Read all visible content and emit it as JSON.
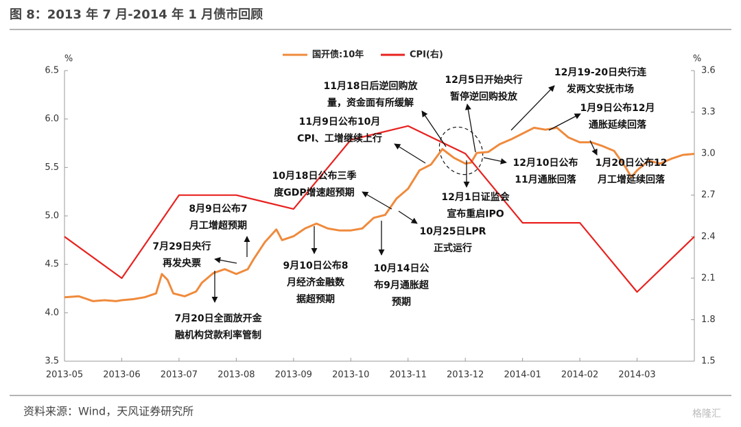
{
  "chart_data": {
    "type": "line",
    "title": "图 8：2013 年 7 月-2014 年 1 月债市回顾",
    "source": "资料来源：Wind，天风证券研究所",
    "watermark": "格隆汇",
    "y_unit": "%",
    "y2_unit": "%",
    "xlim": [
      0,
      11
    ],
    "xticks": [
      {
        "value": 0,
        "label": "2013-05"
      },
      {
        "value": 1,
        "label": "2013-06"
      },
      {
        "value": 2,
        "label": "2013-07"
      },
      {
        "value": 3,
        "label": "2013-08"
      },
      {
        "value": 4,
        "label": "2013-09"
      },
      {
        "value": 5,
        "label": "2013-10"
      },
      {
        "value": 6,
        "label": "2013-11"
      },
      {
        "value": 7,
        "label": "2013-12"
      },
      {
        "value": 8,
        "label": "2014-01"
      },
      {
        "value": 9,
        "label": "2014-02"
      },
      {
        "value": 10,
        "label": "2014-03"
      }
    ],
    "ylim": [
      3.5,
      6.5
    ],
    "yticks": [
      3.5,
      {
        "value": 4,
        "label": "4.0"
      },
      4.5,
      {
        "value": 5,
        "label": "5.0"
      },
      5.5,
      {
        "value": 6,
        "label": "6.0"
      },
      6.5
    ],
    "y2lim": [
      1.5,
      3.6
    ],
    "y2ticks": [
      1.5,
      1.8,
      2.1,
      2.4,
      2.7,
      {
        "value": 3,
        "label": "3.0"
      },
      3.3,
      3.6
    ],
    "legend": "top",
    "series": [
      {
        "name": "国开债:10年",
        "color": "#ef8a3c",
        "x": [
          0,
          0.25,
          0.4,
          0.5,
          0.7,
          0.9,
          1.0,
          1.2,
          1.4,
          1.6,
          1.7,
          1.8,
          1.9,
          2.1,
          2.3,
          2.4,
          2.6,
          2.8,
          3.0,
          3.2,
          3.3,
          3.5,
          3.7,
          3.8,
          4.0,
          4.2,
          4.4,
          4.6,
          4.8,
          5.0,
          5.2,
          5.4,
          5.6,
          5.8,
          6.0,
          6.2,
          6.4,
          6.6,
          6.8,
          7.0,
          7.1,
          7.2,
          7.4,
          7.6,
          7.8,
          8.0,
          8.2,
          8.4,
          8.6,
          8.8,
          9.0,
          9.2,
          9.4,
          9.6,
          9.8,
          9.9,
          10.0,
          10.2,
          10.4,
          10.6,
          10.8,
          11.0
        ],
        "values": [
          4.16,
          4.17,
          4.14,
          4.12,
          4.13,
          4.12,
          4.13,
          4.14,
          4.16,
          4.2,
          4.4,
          4.34,
          4.2,
          4.17,
          4.22,
          4.31,
          4.41,
          4.45,
          4.4,
          4.45,
          4.55,
          4.73,
          4.86,
          4.75,
          4.79,
          4.87,
          4.92,
          4.87,
          4.85,
          4.85,
          4.87,
          4.98,
          5.01,
          5.18,
          5.28,
          5.47,
          5.53,
          5.69,
          5.6,
          5.54,
          5.55,
          5.65,
          5.66,
          5.74,
          5.79,
          5.85,
          5.91,
          5.89,
          5.91,
          5.81,
          5.76,
          5.76,
          5.72,
          5.67,
          5.5,
          5.4,
          5.47,
          5.57,
          5.54,
          5.59,
          5.63,
          5.64
        ]
      },
      {
        "name": "CPI(右)",
        "color": "#e8211e",
        "axis": "y2",
        "x": [
          0,
          1,
          2,
          3,
          4,
          5,
          6,
          7,
          8,
          9,
          10,
          11
        ],
        "values": [
          2.4,
          2.1,
          2.7,
          2.7,
          2.6,
          3.1,
          3.2,
          3.0,
          2.5,
          2.5,
          2.0,
          2.4
        ]
      }
    ],
    "annotations": [
      {
        "lines": [
          "7月20日全面放开金",
          "融机构贷款利率管制"
        ]
      },
      {
        "lines": [
          "7月29日央行",
          "再发央票"
        ]
      },
      {
        "lines": [
          "8月9日公布7",
          "月工增超预期"
        ]
      },
      {
        "lines": [
          "9月10日公布8",
          "月经济金融数",
          "据超预期"
        ]
      },
      {
        "lines": [
          "10月14日公",
          "布9月通胀超",
          "预期"
        ]
      },
      {
        "lines": [
          "10月18日公布三季",
          "度GDP增速超预期"
        ]
      },
      {
        "lines": [
          "10月25日LPR",
          "正式运行"
        ]
      },
      {
        "lines": [
          "11月9日公布10月",
          "CPI、工增继续上行"
        ]
      },
      {
        "lines": [
          "11月18日后逆回购放",
          "量，资金面有所缓解"
        ]
      },
      {
        "lines": [
          "12月5日开始央行",
          "暂停逆回购投放"
        ]
      },
      {
        "lines": [
          "12月1日证监会",
          "宣布重启IPO"
        ]
      },
      {
        "lines": [
          "12月19-20日央行连",
          "发两文安抚市场"
        ]
      },
      {
        "lines": [
          "1月9日公布12月",
          "通胀延续回落"
        ]
      },
      {
        "lines": [
          "12月10日公布",
          "11月通胀回落"
        ]
      },
      {
        "lines": [
          "1月20日公布12",
          "月工增延续回落"
        ]
      }
    ]
  }
}
